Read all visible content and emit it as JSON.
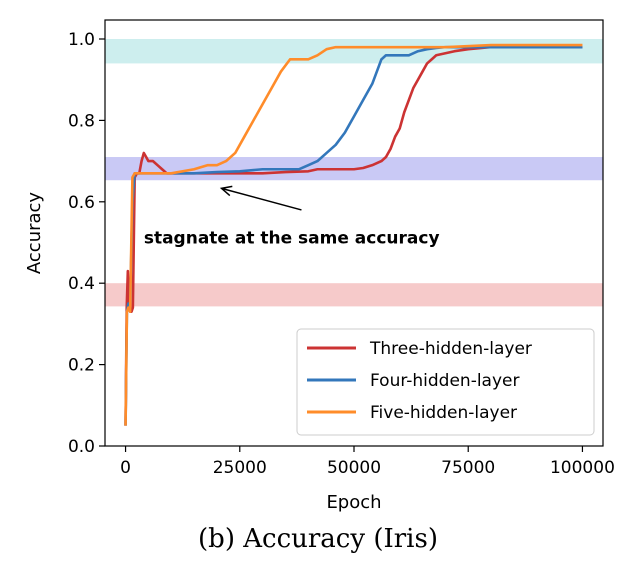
{
  "chart_data": {
    "type": "line",
    "xlabel": "Epoch",
    "ylabel": "Accuracy",
    "xlim": [
      -4500,
      104500
    ],
    "ylim": [
      0.0,
      1.0
    ],
    "xticks": [
      0,
      25000,
      50000,
      75000,
      100000
    ],
    "yticks": [
      0.0,
      0.2,
      0.4,
      0.6,
      0.8,
      1.0
    ],
    "xtick_labels": [
      "0",
      "25000",
      "50000",
      "75000",
      "100000"
    ],
    "ytick_labels": [
      "0.0",
      "0.2",
      "0.4",
      "0.6",
      "0.8",
      "1.0"
    ],
    "legend_position": "lower-right",
    "bands": [
      {
        "y0": 0.94,
        "y1": 1.0,
        "color": "#cdeeee"
      },
      {
        "y0": 0.653,
        "y1": 0.71,
        "color": "#c9c9f5"
      },
      {
        "y0": 0.343,
        "y1": 0.4,
        "color": "#f6caca"
      }
    ],
    "annotation": {
      "text": "stagnate at the same accuracy",
      "text_x": 4000,
      "text_y": 0.497,
      "arrow_from_x": 38500,
      "arrow_from_y": 0.58,
      "arrow_to_x": 21000,
      "arrow_to_y": 0.633
    },
    "series": [
      {
        "name": "Three-hidden-layer",
        "color": "#cc3333",
        "x": [
          0,
          250,
          500,
          800,
          1000,
          1300,
          1600,
          2000,
          2500,
          3000,
          3500,
          4000,
          4500,
          5000,
          6000,
          7000,
          8000,
          9000,
          10000,
          15000,
          20000,
          25000,
          30000,
          35000,
          40000,
          42000,
          44000,
          46000,
          48000,
          50000,
          52000,
          54000,
          56000,
          57000,
          58000,
          59000,
          60000,
          61000,
          62000,
          63000,
          64000,
          65000,
          66000,
          67000,
          68000,
          70000,
          72000,
          75000,
          80000,
          90000,
          100000
        ],
        "y": [
          0.05,
          0.34,
          0.43,
          0.36,
          0.33,
          0.33,
          0.34,
          0.66,
          0.67,
          0.67,
          0.7,
          0.72,
          0.71,
          0.7,
          0.7,
          0.69,
          0.68,
          0.67,
          0.67,
          0.67,
          0.67,
          0.67,
          0.67,
          0.673,
          0.675,
          0.68,
          0.68,
          0.68,
          0.68,
          0.68,
          0.683,
          0.69,
          0.7,
          0.71,
          0.73,
          0.76,
          0.78,
          0.82,
          0.85,
          0.88,
          0.9,
          0.92,
          0.94,
          0.95,
          0.96,
          0.965,
          0.97,
          0.975,
          0.98,
          0.98,
          0.98
        ]
      },
      {
        "name": "Four-hidden-layer",
        "color": "#3377bb",
        "x": [
          0,
          300,
          600,
          1000,
          1500,
          2000,
          2500,
          3000,
          5000,
          10000,
          15000,
          20000,
          25000,
          30000,
          35000,
          38000,
          40000,
          42000,
          44000,
          46000,
          48000,
          50000,
          52000,
          54000,
          55000,
          56000,
          57000,
          58000,
          60000,
          62000,
          64000,
          66000,
          68000,
          70000,
          80000,
          90000,
          100000
        ],
        "y": [
          0.05,
          0.33,
          0.35,
          0.34,
          0.6,
          0.67,
          0.67,
          0.67,
          0.67,
          0.67,
          0.67,
          0.673,
          0.675,
          0.68,
          0.68,
          0.68,
          0.69,
          0.7,
          0.72,
          0.74,
          0.77,
          0.81,
          0.85,
          0.89,
          0.92,
          0.95,
          0.96,
          0.96,
          0.96,
          0.96,
          0.97,
          0.975,
          0.978,
          0.98,
          0.98,
          0.98,
          0.98
        ]
      },
      {
        "name": "Five-hidden-layer",
        "color": "#ff8c2a",
        "x": [
          0,
          300,
          600,
          1000,
          1500,
          2000,
          3000,
          5000,
          10000,
          15000,
          18000,
          20000,
          22000,
          24000,
          26000,
          28000,
          30000,
          32000,
          34000,
          36000,
          37000,
          38000,
          40000,
          42000,
          44000,
          46000,
          50000,
          55000,
          60000,
          70000,
          80000,
          90000,
          100000
        ],
        "y": [
          0.05,
          0.33,
          0.34,
          0.33,
          0.66,
          0.67,
          0.67,
          0.67,
          0.67,
          0.68,
          0.69,
          0.69,
          0.7,
          0.72,
          0.76,
          0.8,
          0.84,
          0.88,
          0.92,
          0.95,
          0.95,
          0.95,
          0.95,
          0.96,
          0.975,
          0.98,
          0.98,
          0.98,
          0.98,
          0.98,
          0.985,
          0.985,
          0.985
        ]
      }
    ]
  },
  "caption": "(b) Accuracy (Iris)"
}
